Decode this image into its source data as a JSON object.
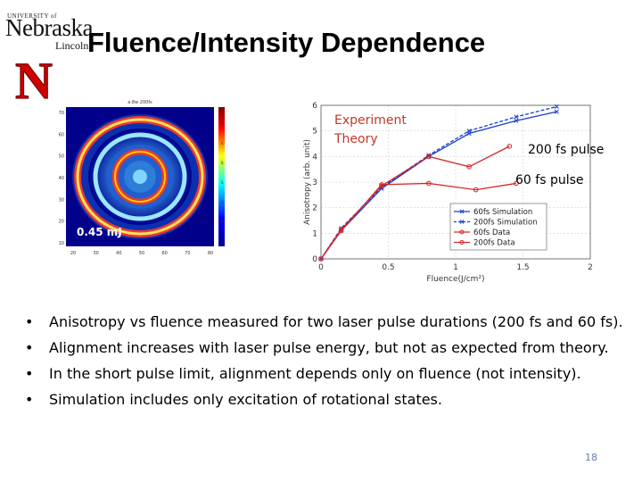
{
  "logo": {
    "university_of": "UNIVERSITY of",
    "nebraska": "Nebraska",
    "lincoln": "Lincoln",
    "letter": "N"
  },
  "title": "Fluence/Intensity Dependence",
  "heatmap": {
    "header": "a.8w 200fs",
    "label": "0.45 mJ",
    "x_ticks": [
      "20",
      "30",
      "40",
      "50",
      "60",
      "70",
      "80"
    ],
    "y_ticks": [
      "70",
      "60",
      "50",
      "40",
      "30",
      "20",
      "10"
    ],
    "cbar_ticks": [
      "0.6",
      "0.5",
      "0.4",
      "0.3",
      "0.2",
      "0.1"
    ],
    "colors": {
      "outer": "#00008b",
      "ring": "#e53935",
      "mid": "#2e7dd8",
      "light": "#7fd6ff"
    }
  },
  "legend_overlay": {
    "experiment": "Experiment",
    "theory": "Theory"
  },
  "annotations": {
    "pulse_200": "200 fs pulse",
    "pulse_60": "60 fs pulse"
  },
  "chart_data": {
    "type": "line",
    "xlabel": "Fluence(J/cm²)",
    "ylabel": "Anisotropy (arb. unit)",
    "xlim": [
      0,
      2
    ],
    "ylim": [
      0,
      6
    ],
    "x_ticks": [
      "0",
      "0.5",
      "1",
      "1.5",
      "2"
    ],
    "y_ticks": [
      "0",
      "1",
      "2",
      "3",
      "4",
      "5",
      "6"
    ],
    "grid": true,
    "legend_position": "bottom-right",
    "series": [
      {
        "name": "60fs Simulation",
        "color": "#1a3fcc",
        "style": "solid",
        "marker": "x",
        "x": [
          0,
          0.15,
          0.45,
          0.8,
          1.1,
          1.45,
          1.75
        ],
        "y": [
          0,
          1.1,
          2.75,
          4.0,
          4.9,
          5.4,
          5.75
        ]
      },
      {
        "name": "200fs Simulation",
        "color": "#1a3fcc",
        "style": "dashed",
        "marker": "x",
        "x": [
          0,
          0.15,
          0.45,
          0.8,
          1.1,
          1.45,
          1.75
        ],
        "y": [
          0,
          1.2,
          2.8,
          4.05,
          5.0,
          5.55,
          5.95
        ]
      },
      {
        "name": "60fs Data",
        "color": "#d62728",
        "style": "solid",
        "marker": "o",
        "x": [
          0,
          0.15,
          0.45,
          0.8,
          1.15,
          1.45
        ],
        "y": [
          0,
          1.1,
          2.9,
          2.95,
          2.7,
          2.95
        ]
      },
      {
        "name": "200fs Data",
        "color": "#d62728",
        "style": "solid",
        "marker": "o",
        "x": [
          0,
          0.15,
          0.45,
          0.8,
          1.1,
          1.4
        ],
        "y": [
          0,
          1.15,
          2.85,
          4.0,
          3.6,
          4.4
        ]
      }
    ]
  },
  "bullets": [
    "Anisotropy vs fluence measured for two laser pulse durations (200 fs and 60 fs).",
    "Alignment increases with laser pulse energy, but not as expected from theory.",
    "In the short pulse limit, alignment depends only on fluence (not intensity).",
    "Simulation includes only excitation of rotational states."
  ],
  "bullet_glyph": "•",
  "page_number": "18"
}
